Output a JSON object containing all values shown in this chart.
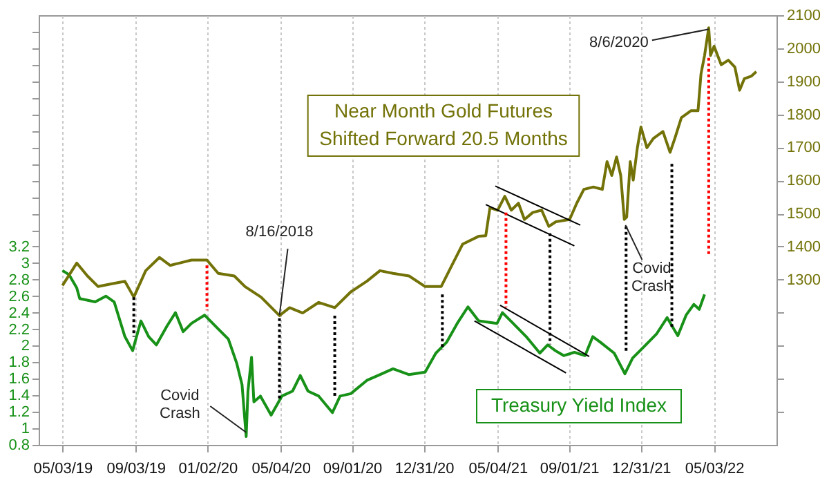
{
  "chart_data": {
    "type": "line",
    "xlim": [
      "2019-03-24",
      "2022-08-16"
    ],
    "xticks": [
      {
        "value": "2019-05-03",
        "label": "05/03/19"
      },
      {
        "value": "2019-09-03",
        "label": "09/03/19"
      },
      {
        "value": "2020-01-02",
        "label": "01/02/20"
      },
      {
        "value": "2020-05-04",
        "label": "05/04/20"
      },
      {
        "value": "2020-09-01",
        "label": "09/01/20"
      },
      {
        "value": "2020-12-31",
        "label": "12/31/20"
      },
      {
        "value": "2021-05-04",
        "label": "05/04/21"
      },
      {
        "value": "2021-09-01",
        "label": "09/01/21"
      },
      {
        "value": "2021-12-31",
        "label": "12/31/21"
      },
      {
        "value": "2022-05-03",
        "label": "05/03/22"
      }
    ],
    "ylim": [
      0.8,
      6.0
    ],
    "yticks": [
      0.8,
      1,
      1.2,
      1.4,
      1.6,
      1.8,
      2,
      2.2,
      2.4,
      2.6,
      2.8,
      3,
      3.2,
      {
        "value": 3.4,
        "label": null
      },
      {
        "value": 3.6,
        "label": null
      },
      {
        "value": 3.8,
        "label": null
      },
      {
        "value": 4.0,
        "label": null
      },
      {
        "value": 4.2,
        "label": null
      },
      {
        "value": 4.4,
        "label": null
      },
      {
        "value": 4.6,
        "label": null
      },
      {
        "value": 4.8,
        "label": null
      },
      {
        "value": 5.0,
        "label": null
      },
      {
        "value": 5.2,
        "label": null
      },
      {
        "value": 5.4,
        "label": null
      },
      {
        "value": 5.6,
        "label": null
      },
      {
        "value": 5.8,
        "label": null
      }
    ],
    "y2lim": [
      800,
      2100
    ],
    "y2ticks": [
      {
        "value": 900,
        "label": null
      },
      {
        "value": 1000,
        "label": null
      },
      {
        "value": 1100,
        "label": null
      },
      {
        "value": 1200,
        "label": null
      },
      1300,
      1400,
      1500,
      1600,
      1700,
      1800,
      1900,
      2000,
      2100
    ],
    "grid": "x",
    "series": [
      {
        "name": "Treasury Yield Index",
        "color": "#179117",
        "x": [
          "2019-05-03",
          "2019-05-14",
          "2019-05-27",
          "2019-06-01",
          "2019-06-27",
          "2019-07-15",
          "2019-07-29",
          "2019-08-16",
          "2019-08-29",
          "2019-09-12",
          "2019-09-25",
          "2019-10-08",
          "2019-10-26",
          "2019-11-09",
          "2019-11-22",
          "2019-12-06",
          "2019-12-28",
          "2020-01-19",
          "2020-02-06",
          "2020-02-20",
          "2020-02-29",
          "2020-03-07",
          "2020-03-10",
          "2020-03-16",
          "2020-03-20",
          "2020-03-31",
          "2020-04-18",
          "2020-05-06",
          "2020-05-24",
          "2020-06-06",
          "2020-06-19",
          "2020-07-07",
          "2020-07-30",
          "2020-08-12",
          "2020-08-30",
          "2020-09-26",
          "2020-10-18",
          "2020-11-09",
          "2020-12-06",
          "2021-01-02",
          "2021-01-20",
          "2021-02-07",
          "2021-02-25",
          "2021-03-15",
          "2021-04-02",
          "2021-05-03",
          "2021-05-12",
          "2021-05-30",
          "2021-06-21",
          "2021-07-14",
          "2021-07-27",
          "2021-08-09",
          "2021-08-23",
          "2021-09-10",
          "2021-09-28",
          "2021-10-11",
          "2021-10-24",
          "2021-11-16",
          "2021-12-04",
          "2021-12-17",
          "2022-01-04",
          "2022-01-26",
          "2022-02-13",
          "2022-03-03",
          "2022-03-17",
          "2022-03-30",
          "2022-04-08",
          "2022-04-17"
        ],
        "values": [
          2.91,
          2.86,
          2.7,
          2.57,
          2.53,
          2.6,
          2.53,
          2.11,
          1.94,
          2.3,
          2.11,
          2.01,
          2.24,
          2.4,
          2.17,
          2.27,
          2.37,
          2.21,
          2.08,
          1.79,
          1.53,
          0.9,
          1.45,
          1.86,
          1.32,
          1.39,
          1.16,
          1.39,
          1.45,
          1.64,
          1.45,
          1.39,
          1.19,
          1.39,
          1.42,
          1.58,
          1.65,
          1.72,
          1.65,
          1.68,
          1.91,
          2.04,
          2.27,
          2.47,
          2.3,
          2.27,
          2.4,
          2.27,
          2.11,
          1.91,
          2.01,
          1.94,
          1.88,
          1.92,
          1.88,
          2.11,
          2.04,
          1.91,
          1.66,
          1.85,
          1.98,
          2.14,
          2.34,
          2.12,
          2.37,
          2.5,
          2.44,
          2.62
        ]
      },
      {
        "name": "Near Month Gold Futures\nShifted Forward 20.5 Months",
        "color": "#727208",
        "axis": "y2",
        "x": [
          "2019-05-03",
          "2019-05-27",
          "2019-06-14",
          "2019-07-02",
          "2019-07-24",
          "2019-08-16",
          "2019-08-31",
          "2019-09-20",
          "2019-10-13",
          "2019-10-31",
          "2019-11-18",
          "2019-12-06",
          "2020-01-01",
          "2020-01-20",
          "2020-02-16",
          "2020-03-05",
          "2020-04-01",
          "2020-05-02",
          "2020-05-19",
          "2020-06-10",
          "2020-07-07",
          "2020-08-03",
          "2020-08-30",
          "2020-09-26",
          "2020-10-18",
          "2020-11-09",
          "2020-12-06",
          "2021-01-02",
          "2021-01-29",
          "2021-02-16",
          "2021-03-06",
          "2021-04-02",
          "2021-04-14",
          "2021-04-21",
          "2021-05-04",
          "2021-05-16",
          "2021-05-27",
          "2021-06-08",
          "2021-06-18",
          "2021-07-02",
          "2021-07-17",
          "2021-07-29",
          "2021-08-10",
          "2021-09-02",
          "2021-09-14",
          "2021-09-26",
          "2021-10-12",
          "2021-10-27",
          "2021-11-04",
          "2021-11-12",
          "2021-11-20",
          "2021-11-27",
          "2021-12-03",
          "2021-12-07",
          "2021-12-13",
          "2021-12-18",
          "2021-12-25",
          "2021-12-31",
          "2022-01-10",
          "2022-01-21",
          "2022-02-06",
          "2022-02-18",
          "2022-02-26",
          "2022-03-09",
          "2022-03-25",
          "2022-04-06",
          "2022-04-11",
          "2022-04-17",
          "2022-04-24",
          "2022-04-27",
          "2022-05-03",
          "2022-05-15",
          "2022-05-27",
          "2022-06-07",
          "2022-06-15",
          "2022-06-23",
          "2022-07-05",
          "2022-07-13"
        ],
        "values": [
          1282,
          1350,
          1311,
          1279,
          1287,
          1295,
          1247,
          1327,
          1367,
          1343,
          1351,
          1359,
          1359,
          1319,
          1311,
          1279,
          1247,
          1191,
          1215,
          1199,
          1231,
          1215,
          1263,
          1295,
          1327,
          1319,
          1311,
          1279,
          1279,
          1343,
          1407,
          1431,
          1433,
          1517,
          1510,
          1552,
          1510,
          1531,
          1482,
          1503,
          1510,
          1461,
          1475,
          1482,
          1531,
          1573,
          1580,
          1573,
          1657,
          1615,
          1671,
          1615,
          1482,
          1489,
          1657,
          1601,
          1699,
          1762,
          1699,
          1727,
          1748,
          1685,
          1727,
          1790,
          1811,
          1811,
          1922,
          1978,
          2062,
          1978,
          2006,
          1950,
          1964,
          1943,
          1873,
          1908,
          1916,
          1929
        ]
      },
      {
        "color": "#000000",
        "axis": "y2",
        "x": [
          "2021-04-30",
          "2021-09-20"
        ],
        "values": [
          1583,
          1465
        ]
      },
      {
        "color": "#000000",
        "axis": "y2",
        "x": [
          "2021-04-14",
          "2021-09-10"
        ],
        "values": [
          1527,
          1402
        ]
      },
      {
        "color": "#000000",
        "x": [
          "2021-05-08",
          "2021-10-05"
        ],
        "values": [
          2.49,
          1.87
        ]
      },
      {
        "color": "#000000",
        "x": [
          "2021-03-26",
          "2021-08-27"
        ],
        "values": [
          2.3,
          1.67
        ]
      },
      {
        "color": "#000000",
        "axis": "y2",
        "line_style": "dotted",
        "x": [
          "2019-08-31",
          "2019-08-31"
        ],
        "values": [
          1247,
          1127
        ]
      },
      {
        "color": "#ff0000",
        "axis": "y2",
        "line_style": "dotted",
        "x": [
          "2020-01-01",
          "2020-01-01"
        ],
        "values": [
          1343,
          1207
        ]
      },
      {
        "color": "#000000",
        "axis": "y2",
        "line_style": "dotted",
        "x": [
          "2020-05-02",
          "2020-05-02"
        ],
        "values": [
          1183,
          935
        ]
      },
      {
        "color": "#000000",
        "axis": "y2",
        "line_style": "dotted",
        "x": [
          "2020-08-03",
          "2020-08-03"
        ],
        "values": [
          1191,
          943
        ]
      },
      {
        "color": "#000000",
        "axis": "y2",
        "line_style": "dotted",
        "x": [
          "2021-01-31",
          "2021-01-31"
        ],
        "values": [
          1255,
          1087
        ]
      },
      {
        "color": "#ff0000",
        "axis": "y2",
        "line_style": "dotted",
        "x": [
          "2021-05-18",
          "2021-05-18"
        ],
        "values": [
          1503,
          1216
        ]
      },
      {
        "color": "#000000",
        "axis": "y2",
        "line_style": "dotted",
        "x": [
          "2021-07-31",
          "2021-07-31"
        ],
        "values": [
          1440,
          1104
        ]
      },
      {
        "color": "#000000",
        "axis": "y2",
        "line_style": "dotted",
        "x": [
          "2021-12-06",
          "2021-12-06"
        ],
        "values": [
          1461,
          1083
        ]
      },
      {
        "color": "#000000",
        "axis": "y2",
        "line_style": "dotted",
        "x": [
          "2022-02-21",
          "2022-02-21"
        ],
        "values": [
          1650,
          1153
        ]
      },
      {
        "color": "#ff0000",
        "axis": "y2",
        "line_style": "dotted",
        "x": [
          "2022-04-24",
          "2022-04-24"
        ],
        "values": [
          1971,
          1370
        ]
      }
    ],
    "annotations": [
      {
        "text": "8/16/2018",
        "x": "2020-05-02",
        "y": 2.37
      },
      {
        "text": "Covid\nCrash",
        "x": "2020-03-07",
        "y": 0.95
      },
      {
        "text": "Covid\nCrash",
        "x": "2021-12-05",
        "y": 3.46
      },
      {
        "text": "8/6/2020",
        "x": "2022-04-24",
        "y": 5.83
      }
    ]
  }
}
